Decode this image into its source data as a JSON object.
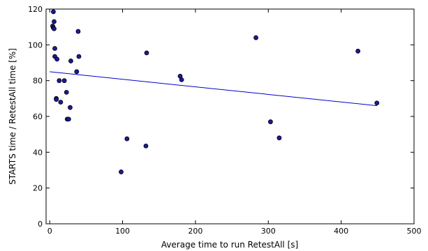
{
  "chart_data": {
    "type": "scatter",
    "title": "",
    "xlabel": "Average time to run RetestAll [s]",
    "ylabel": "STARTS time / RetestAll time [%]",
    "xlim": [
      -5,
      500
    ],
    "ylim": [
      0,
      120
    ],
    "x_ticks": [
      0,
      100,
      200,
      300,
      400,
      500
    ],
    "y_ticks": [
      0,
      20,
      40,
      60,
      80,
      100,
      120
    ],
    "grid": false,
    "colors": {
      "point_fill": "#1a1a9c",
      "point_stroke": "#000000",
      "trend_line": "#0000cc"
    },
    "series": [
      {
        "points": [
          [
            5,
            118.5
          ],
          [
            4,
            110.5
          ],
          [
            5,
            109.5
          ],
          [
            6,
            113
          ],
          [
            6,
            109
          ],
          [
            7,
            98
          ],
          [
            7,
            93.5
          ],
          [
            10,
            92
          ],
          [
            9,
            70
          ],
          [
            9,
            69.5
          ],
          [
            13,
            80
          ],
          [
            15,
            68
          ],
          [
            20,
            80
          ],
          [
            23,
            73.5
          ],
          [
            24,
            58.5
          ],
          [
            26,
            58.5
          ],
          [
            28,
            65
          ],
          [
            29,
            91
          ],
          [
            37,
            85
          ],
          [
            39,
            107.5
          ],
          [
            40,
            93.5
          ],
          [
            98,
            29
          ],
          [
            106,
            47.5
          ],
          [
            132,
            43.5
          ],
          [
            133,
            95.5
          ],
          [
            179,
            82.5
          ],
          [
            181,
            80.5
          ],
          [
            283,
            104
          ],
          [
            303,
            57
          ],
          [
            315,
            48
          ],
          [
            423,
            96.5
          ],
          [
            449,
            67.5
          ]
        ]
      }
    ],
    "trendline": {
      "x": [
        0,
        449
      ],
      "y": [
        85,
        66
      ]
    }
  }
}
